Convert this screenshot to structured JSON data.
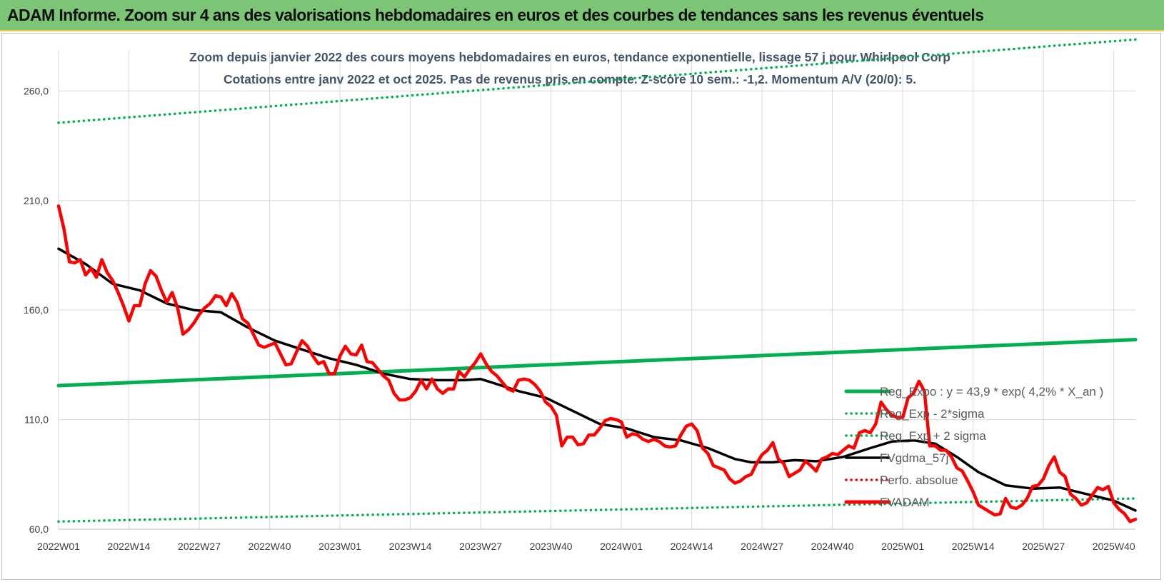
{
  "banner": {
    "title": "ADAM Informe. Zoom sur 4 ans des valorisations hebdomadaires en euros et des courbes de tendances sans les revenus éventuels"
  },
  "chart_data": {
    "type": "line",
    "title_lines": [
      "Zoom depuis janvier 2022 des cours moyens hebdomadaires en euros, tendance exponentielle, lissage 57 j pour Whirlpool Corp",
      "Cotations entre janv 2022 et oct 2025. Pas de revenus pris en compte. Z-score 10 sem.: -1,2.  Momentum A/V (20/0): 5."
    ],
    "xlabel": "",
    "ylabel": "",
    "ylim": [
      60,
      280
    ],
    "yticks": [
      "260,0",
      "210,0",
      "160,0",
      "110,0",
      "60,0"
    ],
    "ytick_values": [
      260,
      210,
      160,
      110,
      60
    ],
    "xticks": [
      "2022W01",
      "2022W14",
      "2022W27",
      "2022W40",
      "2023W01",
      "2023W14",
      "2023W27",
      "2023W40",
      "2024W01",
      "2024W14",
      "2024W27",
      "2024W40",
      "2025W01",
      "2025W14",
      "2025W27",
      "2025W40"
    ],
    "xtick_weeks": [
      0,
      13,
      26,
      39,
      52,
      65,
      78,
      91,
      104,
      117,
      130,
      143,
      156,
      169,
      182,
      195
    ],
    "x_max_week": 199,
    "grid": true,
    "legend_position": "right",
    "colors": {
      "trend": "#00b050",
      "smooth": "#000000",
      "price": "#ff0000",
      "perf": "#ff0000"
    },
    "series": [
      {
        "name": "Reg_Expo : y = 43,9 * exp( 4,2% *  X_an )",
        "style": "solid-thick",
        "color": "#00b050",
        "points": [
          [
            0,
            125.5
          ],
          [
            199,
            146.5
          ]
        ]
      },
      {
        "name": "Reg_Exp - 2*sigma",
        "style": "dotted",
        "color": "#00b050",
        "points": [
          [
            0,
            63.5
          ],
          [
            199,
            74
          ]
        ]
      },
      {
        "name": "Reg_Exp + 2 sigma",
        "style": "dotted",
        "color": "#00b050",
        "points": [
          [
            0,
            245.5
          ],
          [
            199,
            283.5
          ]
        ]
      },
      {
        "name": "FVgdma_57j",
        "style": "solid",
        "color": "#000000",
        "points": [
          [
            0,
            188
          ],
          [
            5,
            181
          ],
          [
            10,
            172
          ],
          [
            15,
            169
          ],
          [
            20,
            163
          ],
          [
            25,
            160
          ],
          [
            30,
            159
          ],
          [
            35,
            152
          ],
          [
            40,
            146
          ],
          [
            45,
            142
          ],
          [
            50,
            138
          ],
          [
            55,
            135
          ],
          [
            60,
            131
          ],
          [
            65,
            128.5
          ],
          [
            70,
            128
          ],
          [
            75,
            128
          ],
          [
            78,
            128.5
          ],
          [
            80,
            127
          ],
          [
            85,
            123
          ],
          [
            90,
            120
          ],
          [
            95,
            114
          ],
          [
            100,
            108
          ],
          [
            105,
            106
          ],
          [
            110,
            102
          ],
          [
            115,
            100.5
          ],
          [
            120,
            97
          ],
          [
            125,
            92
          ],
          [
            128,
            90.5
          ],
          [
            132,
            90.5
          ],
          [
            136,
            91.5
          ],
          [
            140,
            91
          ],
          [
            145,
            93
          ],
          [
            150,
            97
          ],
          [
            154,
            100
          ],
          [
            158,
            100.5
          ],
          [
            162,
            99
          ],
          [
            166,
            93
          ],
          [
            170,
            86
          ],
          [
            175,
            80
          ],
          [
            180,
            78.5
          ],
          [
            185,
            79
          ],
          [
            190,
            76
          ],
          [
            195,
            73
          ],
          [
            199,
            68.5
          ]
        ]
      },
      {
        "name": "Perfo. absolue",
        "style": "dotted",
        "color": "#ff0000",
        "points": []
      },
      {
        "name": "FVADAM",
        "style": "solid-thick",
        "color": "#ff0000",
        "points": [
          [
            0,
            207.5
          ],
          [
            1,
            197
          ],
          [
            2,
            182
          ],
          [
            3,
            181.5
          ],
          [
            4,
            183
          ],
          [
            5,
            176
          ],
          [
            6,
            179
          ],
          [
            7,
            175
          ],
          [
            8,
            183
          ],
          [
            9,
            177
          ],
          [
            10,
            173.5
          ],
          [
            11,
            168
          ],
          [
            12,
            162
          ],
          [
            13,
            155
          ],
          [
            14,
            162
          ],
          [
            15,
            162
          ],
          [
            16,
            172
          ],
          [
            17,
            178
          ],
          [
            18,
            175.5
          ],
          [
            19,
            169
          ],
          [
            20,
            163.5
          ],
          [
            21,
            168
          ],
          [
            22,
            161
          ],
          [
            23,
            149
          ],
          [
            24,
            151
          ],
          [
            25,
            154
          ],
          [
            26,
            158
          ],
          [
            27,
            161
          ],
          [
            28,
            163
          ],
          [
            29,
            166.5
          ],
          [
            30,
            166
          ],
          [
            31,
            162
          ],
          [
            32,
            167.5
          ],
          [
            33,
            163.5
          ],
          [
            34,
            156
          ],
          [
            35,
            154
          ],
          [
            36,
            149
          ],
          [
            37,
            144
          ],
          [
            38,
            143
          ],
          [
            39,
            144
          ],
          [
            40,
            145
          ],
          [
            41,
            140
          ],
          [
            42,
            135
          ],
          [
            43,
            135.5
          ],
          [
            44,
            141
          ],
          [
            45,
            146
          ],
          [
            46,
            143.5
          ],
          [
            47,
            139
          ],
          [
            48,
            135.5
          ],
          [
            49,
            136.5
          ],
          [
            50,
            131
          ],
          [
            51,
            131
          ],
          [
            52,
            139
          ],
          [
            53,
            143.5
          ],
          [
            54,
            140
          ],
          [
            55,
            139.5
          ],
          [
            56,
            144
          ],
          [
            57,
            136.5
          ],
          [
            58,
            136
          ],
          [
            59,
            133
          ],
          [
            60,
            130
          ],
          [
            61,
            128
          ],
          [
            62,
            122
          ],
          [
            63,
            119
          ],
          [
            64,
            119
          ],
          [
            65,
            120
          ],
          [
            66,
            123
          ],
          [
            67,
            128
          ],
          [
            68,
            124
          ],
          [
            69,
            128.5
          ],
          [
            70,
            124
          ],
          [
            71,
            122
          ],
          [
            72,
            124
          ],
          [
            73,
            124
          ],
          [
            74,
            132
          ],
          [
            75,
            129.5
          ],
          [
            76,
            133
          ],
          [
            77,
            136
          ],
          [
            78,
            140
          ],
          [
            79,
            135.5
          ],
          [
            80,
            132
          ],
          [
            81,
            130
          ],
          [
            82,
            127
          ],
          [
            83,
            124
          ],
          [
            84,
            123
          ],
          [
            85,
            128
          ],
          [
            86,
            128.5
          ],
          [
            87,
            128
          ],
          [
            88,
            126
          ],
          [
            89,
            123
          ],
          [
            90,
            118
          ],
          [
            91,
            116
          ],
          [
            92,
            112
          ],
          [
            93,
            98
          ],
          [
            94,
            102
          ],
          [
            95,
            102
          ],
          [
            96,
            98.5
          ],
          [
            97,
            99
          ],
          [
            98,
            103
          ],
          [
            99,
            103
          ],
          [
            100,
            106
          ],
          [
            101,
            109.5
          ],
          [
            102,
            110.5
          ],
          [
            103,
            110
          ],
          [
            104,
            109
          ],
          [
            105,
            102
          ],
          [
            106,
            103.5
          ],
          [
            107,
            103
          ],
          [
            108,
            101
          ],
          [
            109,
            100
          ],
          [
            110,
            101
          ],
          [
            111,
            100
          ],
          [
            112,
            98
          ],
          [
            113,
            97.5
          ],
          [
            114,
            98
          ],
          [
            115,
            103
          ],
          [
            116,
            107
          ],
          [
            117,
            108
          ],
          [
            118,
            105
          ],
          [
            119,
            97
          ],
          [
            120,
            94.5
          ],
          [
            121,
            89
          ],
          [
            122,
            88
          ],
          [
            123,
            87
          ],
          [
            124,
            83
          ],
          [
            125,
            81
          ],
          [
            126,
            82
          ],
          [
            127,
            84
          ],
          [
            128,
            85
          ],
          [
            129,
            90
          ],
          [
            130,
            94
          ],
          [
            131,
            96
          ],
          [
            132,
            99.5
          ],
          [
            133,
            92
          ],
          [
            134,
            90
          ],
          [
            135,
            84
          ],
          [
            136,
            85.5
          ],
          [
            137,
            87
          ],
          [
            138,
            91
          ],
          [
            139,
            89
          ],
          [
            140,
            86.5
          ],
          [
            141,
            92
          ],
          [
            142,
            93
          ],
          [
            143,
            94.5
          ],
          [
            144,
            94
          ],
          [
            145,
            96
          ],
          [
            146,
            98
          ],
          [
            147,
            97
          ],
          [
            148,
            104
          ],
          [
            149,
            105
          ],
          [
            150,
            104
          ],
          [
            151,
            108
          ],
          [
            152,
            118
          ],
          [
            153,
            114.5
          ],
          [
            154,
            112
          ],
          [
            155,
            111
          ],
          [
            156,
            111
          ],
          [
            157,
            120
          ],
          [
            158,
            122
          ],
          [
            159,
            127.5
          ],
          [
            160,
            123
          ],
          [
            161,
            98
          ],
          [
            162,
            98
          ],
          [
            163,
            96
          ],
          [
            164,
            96
          ],
          [
            165,
            93
          ],
          [
            166,
            88
          ],
          [
            167,
            86.5
          ],
          [
            168,
            82
          ],
          [
            169,
            77
          ],
          [
            170,
            71
          ],
          [
            171,
            69.5
          ],
          [
            172,
            68
          ],
          [
            173,
            66.5
          ],
          [
            174,
            67
          ],
          [
            175,
            74
          ],
          [
            176,
            70
          ],
          [
            177,
            69.5
          ],
          [
            178,
            71
          ],
          [
            179,
            74
          ],
          [
            180,
            79.5
          ],
          [
            181,
            80
          ],
          [
            182,
            83
          ],
          [
            183,
            89
          ],
          [
            184,
            93
          ],
          [
            185,
            86
          ],
          [
            186,
            84
          ],
          [
            187,
            76
          ],
          [
            188,
            74
          ],
          [
            189,
            71
          ],
          [
            190,
            72
          ],
          [
            191,
            75.5
          ],
          [
            192,
            79
          ],
          [
            193,
            78
          ],
          [
            194,
            79.5
          ],
          [
            195,
            72
          ],
          [
            196,
            69
          ],
          [
            197,
            67
          ],
          [
            198,
            63.5
          ],
          [
            199,
            64.5
          ]
        ]
      }
    ]
  }
}
